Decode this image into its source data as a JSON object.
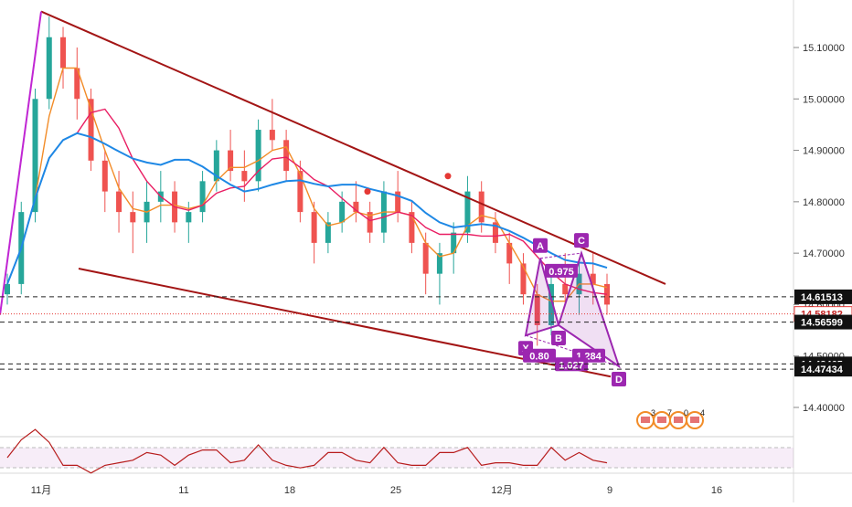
{
  "chart_data": [
    {
      "type": "candlestick",
      "title": "",
      "xlabel": "",
      "ylabel": "",
      "ylim": [
        14.35,
        15.17
      ],
      "x_ticks": [
        "11月",
        "11",
        "18",
        "25",
        "12月",
        "9",
        "16"
      ],
      "y_ticks": [
        "15.10000",
        "15.00000",
        "14.90000",
        "14.80000",
        "14.70000",
        "14.60000",
        "14.50000",
        "14.40000"
      ],
      "price_tags": [
        {
          "label": "14.61513",
          "value": 14.61513,
          "style": "dashed-line"
        },
        {
          "label": "14.58182",
          "value": 14.58182,
          "style": "current-price"
        },
        {
          "label": "14.56599",
          "value": 14.56599,
          "style": "dashed-line"
        },
        {
          "label": "14.48465",
          "value": 14.48465,
          "style": "dashed-line"
        },
        {
          "label": "14.47434",
          "value": 14.47434,
          "style": "dashed-line"
        }
      ],
      "candles_ohlc_approx": [
        [
          14.62,
          14.66,
          14.6,
          14.64
        ],
        [
          14.64,
          14.8,
          14.62,
          14.78
        ],
        [
          14.78,
          15.02,
          14.76,
          15.0
        ],
        [
          15.0,
          15.16,
          14.98,
          15.12
        ],
        [
          15.12,
          15.14,
          15.02,
          15.06
        ],
        [
          15.06,
          15.1,
          14.96,
          15.0
        ],
        [
          15.0,
          15.02,
          14.86,
          14.88
        ],
        [
          14.88,
          14.9,
          14.78,
          14.82
        ],
        [
          14.82,
          14.86,
          14.74,
          14.78
        ],
        [
          14.78,
          14.82,
          14.7,
          14.76
        ],
        [
          14.76,
          14.84,
          14.72,
          14.8
        ],
        [
          14.8,
          14.86,
          14.76,
          14.82
        ],
        [
          14.82,
          14.84,
          14.74,
          14.76
        ],
        [
          14.76,
          14.8,
          14.72,
          14.78
        ],
        [
          14.78,
          14.86,
          14.76,
          14.84
        ],
        [
          14.84,
          14.92,
          14.82,
          14.9
        ],
        [
          14.9,
          14.94,
          14.84,
          14.86
        ],
        [
          14.86,
          14.9,
          14.8,
          14.84
        ],
        [
          14.84,
          14.96,
          14.82,
          14.94
        ],
        [
          14.94,
          15.0,
          14.9,
          14.92
        ],
        [
          14.92,
          14.94,
          14.84,
          14.86
        ],
        [
          14.86,
          14.88,
          14.76,
          14.78
        ],
        [
          14.78,
          14.8,
          14.68,
          14.72
        ],
        [
          14.72,
          14.78,
          14.7,
          14.76
        ],
        [
          14.76,
          14.82,
          14.74,
          14.8
        ],
        [
          14.8,
          14.84,
          14.76,
          14.78
        ],
        [
          14.78,
          14.8,
          14.72,
          14.74
        ],
        [
          14.74,
          14.84,
          14.72,
          14.82
        ],
        [
          14.82,
          14.86,
          14.76,
          14.78
        ],
        [
          14.78,
          14.8,
          14.7,
          14.72
        ],
        [
          14.72,
          14.74,
          14.62,
          14.66
        ],
        [
          14.66,
          14.72,
          14.6,
          14.7
        ],
        [
          14.7,
          14.76,
          14.66,
          14.74
        ],
        [
          14.74,
          14.85,
          14.72,
          14.82
        ],
        [
          14.82,
          14.84,
          14.74,
          14.76
        ],
        [
          14.76,
          14.78,
          14.7,
          14.72
        ],
        [
          14.72,
          14.74,
          14.64,
          14.68
        ],
        [
          14.68,
          14.7,
          14.6,
          14.62
        ],
        [
          14.62,
          14.64,
          14.52,
          14.56
        ],
        [
          14.56,
          14.66,
          14.54,
          14.64
        ],
        [
          14.64,
          14.7,
          14.6,
          14.62
        ],
        [
          14.62,
          14.68,
          14.58,
          14.66
        ],
        [
          14.66,
          14.7,
          14.6,
          14.64
        ],
        [
          14.64,
          14.66,
          14.58,
          14.6
        ]
      ],
      "moving_averages": [
        {
          "color": "#f28c28"
        },
        {
          "color": "#e91e63"
        },
        {
          "color": "#1e88e5"
        }
      ],
      "trendlines": [
        {
          "name": "upper-falling-trendline",
          "from": [
            "11月",
            15.17
          ],
          "to": [
            "16",
            14.64
          ],
          "color": "#a31515"
        },
        {
          "name": "lower-falling-trendline",
          "from": [
            "11月",
            14.67
          ],
          "to": [
            "9",
            14.46
          ],
          "color": "#a31515"
        }
      ],
      "harmonic_pattern": {
        "color": "#9c27b0",
        "points": [
          {
            "label": "X",
            "value": 14.54
          },
          {
            "label": "A",
            "value": 14.69
          },
          {
            "label": "B",
            "value": 14.56
          },
          {
            "label": "C",
            "value": 14.7
          },
          {
            "label": "D",
            "value": 14.48
          }
        ],
        "ratios": [
          "0.975",
          "0.80",
          "1.284",
          "1.027"
        ]
      },
      "event_badges": [
        "3",
        "7",
        "0",
        "4"
      ]
    },
    {
      "type": "line",
      "name": "rsi-subpane",
      "xlabel": "",
      "ylabel": "",
      "band": "shaded",
      "color": "#b71c1c"
    }
  ]
}
